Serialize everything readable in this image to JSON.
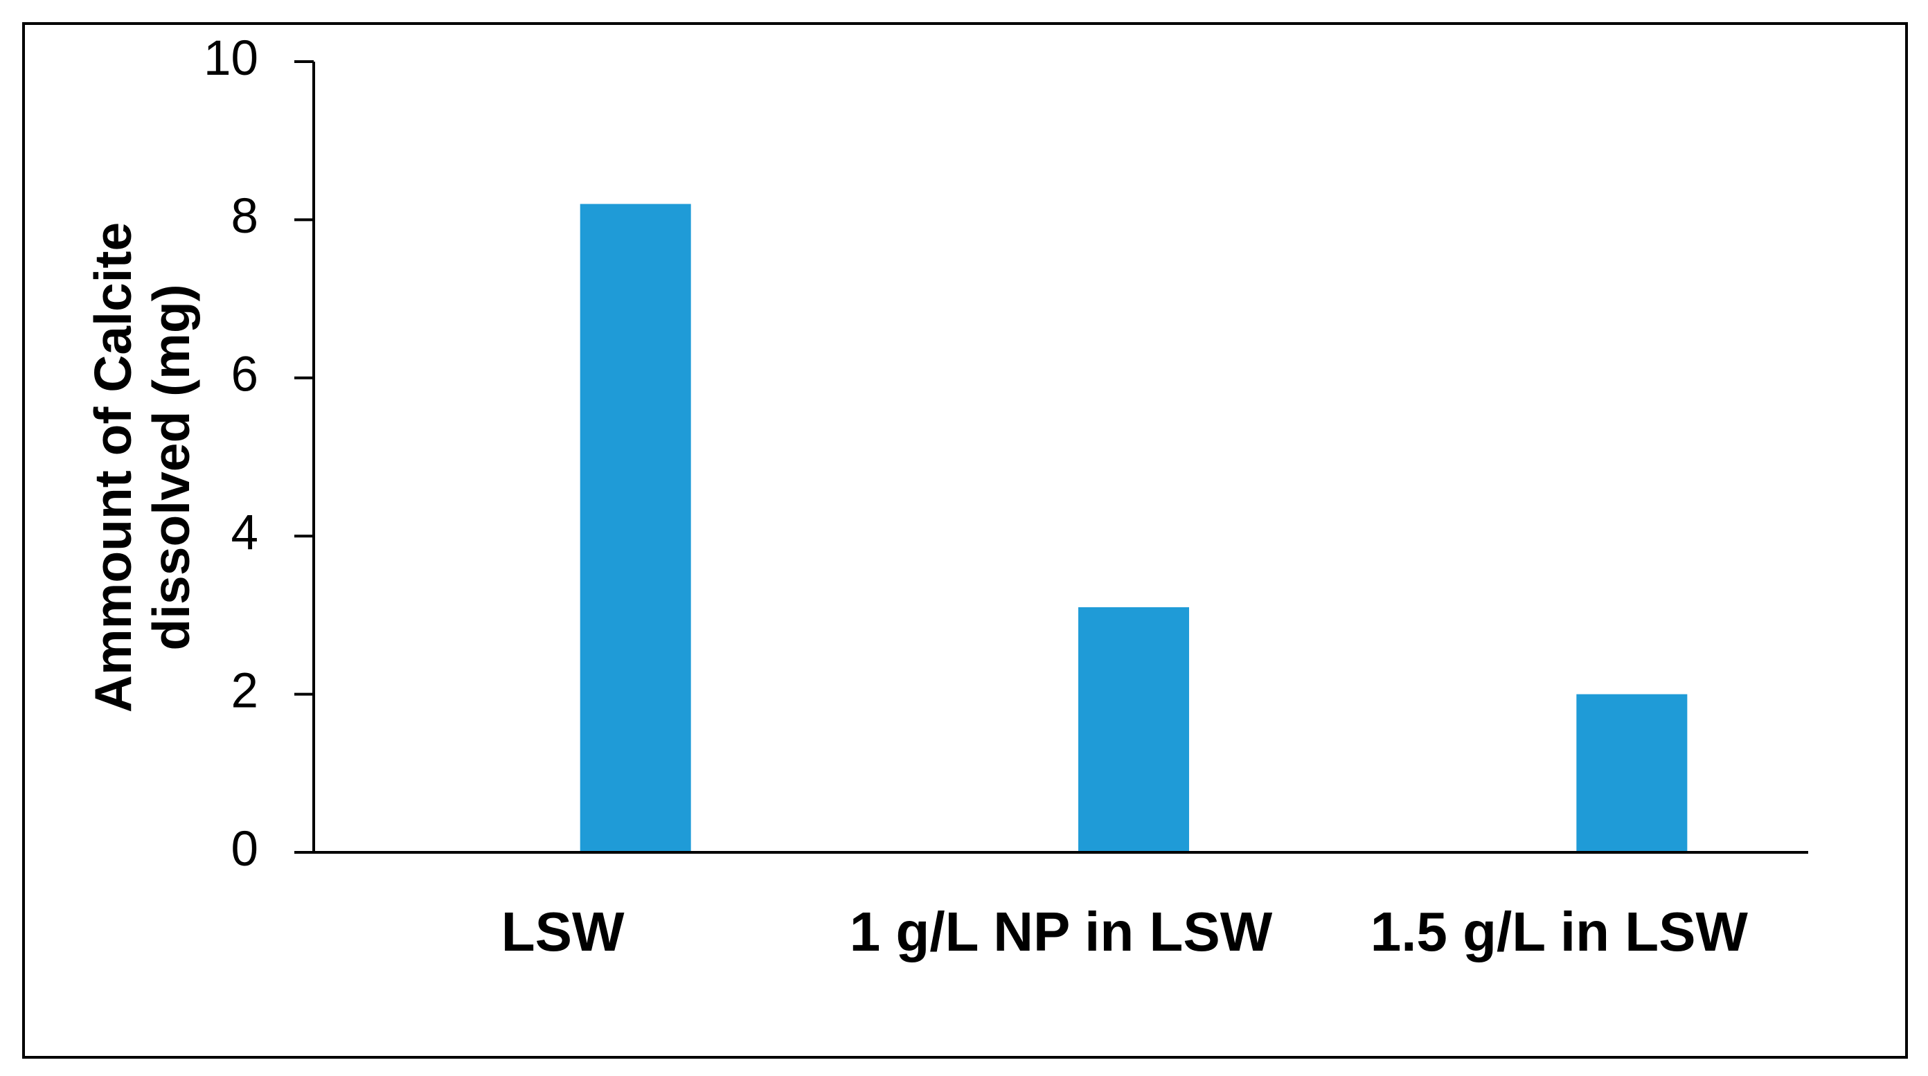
{
  "chart_data": {
    "type": "bar",
    "y_label": "Ammount of Calcite dissolved (mg)",
    "categories": [
      "LSW",
      "1 g/L NP in LSW",
      "1.5 g/L in LSW"
    ],
    "values": [
      8.2,
      3.1,
      2.0
    ],
    "color": "#1f9bd7",
    "ylim": [
      0,
      10
    ],
    "yticks": [
      0,
      2,
      4,
      6,
      8,
      10
    ],
    "grid": false
  }
}
